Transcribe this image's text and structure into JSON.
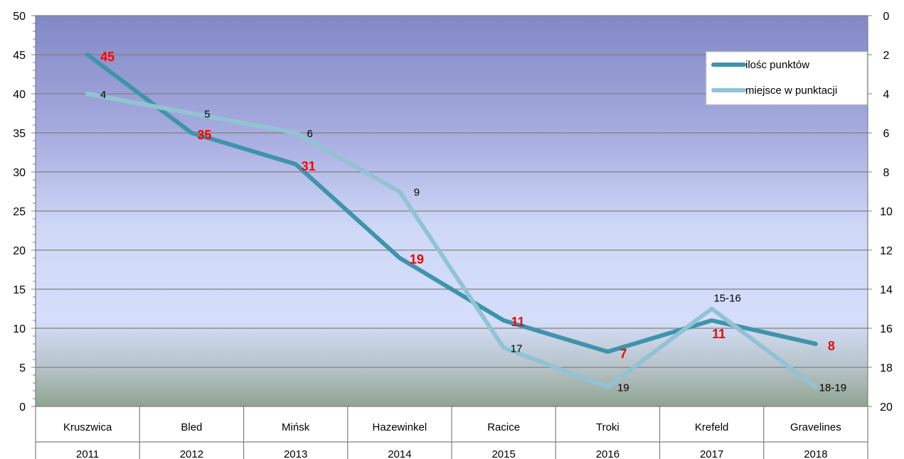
{
  "chart_data": {
    "type": "line",
    "categories": [
      "Kruszwica",
      "Bled",
      "Mińsk",
      "Hazewinkel",
      "Racice",
      "Troki",
      "Krefeld",
      "Gravelines"
    ],
    "years": [
      "2011",
      "2012",
      "2013",
      "2014",
      "2015",
      "2016",
      "2017",
      "2018"
    ],
    "y_left": {
      "min": 0,
      "max": 50,
      "step": 5
    },
    "y_right": {
      "min": 0,
      "max": 20,
      "step": 2,
      "reversed": true
    },
    "grid": true,
    "legend_position": "top-right",
    "series": [
      {
        "name": "ilośc punktów",
        "axis": "left",
        "color": "#3f94aa",
        "label_color": "#ff0000",
        "values": [
          45,
          35,
          31,
          19,
          11,
          7,
          11,
          8
        ],
        "labels": [
          "45",
          "35",
          "31",
          "19",
          "11",
          "7",
          "11",
          "8"
        ]
      },
      {
        "name": "miejsce w punktacji",
        "axis": "right",
        "color": "#92c3d4",
        "label_color": "#000000",
        "values": [
          4,
          5,
          6,
          9,
          17,
          19,
          15,
          19
        ],
        "labels": [
          "4",
          "5",
          "6",
          "9",
          "17",
          "19",
          "15-16",
          "18-19"
        ]
      }
    ]
  }
}
